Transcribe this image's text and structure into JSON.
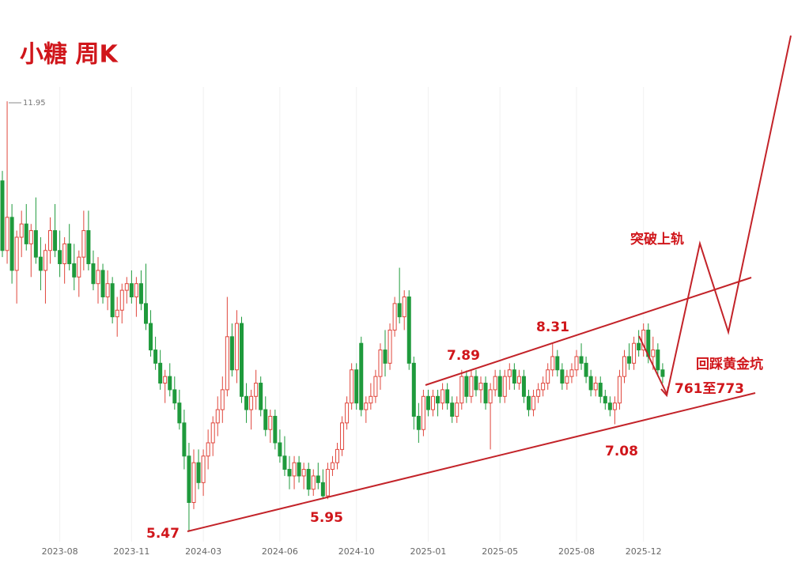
{
  "chart_data": {
    "type": "candlestick",
    "title": "小糖  周K",
    "up_color": "#e0463c",
    "down_color": "#1f9a3c",
    "grid": true,
    "ylim": [
      5.25,
      13.0
    ],
    "categories": [
      null,
      null,
      null,
      null,
      null,
      null,
      null,
      null,
      null,
      null,
      null,
      null,
      "2023-08",
      null,
      null,
      null,
      null,
      null,
      null,
      null,
      null,
      null,
      null,
      null,
      null,
      null,
      null,
      "2023-11",
      null,
      null,
      null,
      null,
      null,
      null,
      null,
      null,
      null,
      null,
      null,
      null,
      null,
      null,
      "2024-03",
      null,
      null,
      null,
      null,
      null,
      null,
      null,
      null,
      null,
      null,
      null,
      null,
      null,
      null,
      null,
      "2024-06",
      null,
      null,
      null,
      null,
      null,
      null,
      null,
      null,
      null,
      null,
      null,
      null,
      null,
      null,
      null,
      "2024-10",
      null,
      null,
      null,
      null,
      null,
      null,
      null,
      null,
      null,
      null,
      null,
      null,
      null,
      null,
      "2025-01",
      null,
      null,
      null,
      null,
      null,
      null,
      null,
      null,
      null,
      null,
      null,
      null,
      null,
      null,
      "2025-05",
      null,
      null,
      null,
      null,
      null,
      null,
      null,
      null,
      null,
      null,
      null,
      null,
      null,
      null,
      null,
      "2025-08",
      null,
      null,
      null,
      null,
      null,
      null,
      null,
      null,
      null,
      null,
      null,
      null,
      null,
      "2025-12",
      null,
      null,
      null,
      null
    ],
    "ohlc": [
      [
        10.75,
        10.9,
        9.6,
        9.7
      ],
      [
        9.7,
        11.95,
        9.5,
        10.2
      ],
      [
        10.2,
        10.4,
        9.2,
        9.4
      ],
      [
        9.4,
        10.0,
        8.9,
        9.9
      ],
      [
        9.9,
        10.3,
        9.6,
        10.1
      ],
      [
        10.1,
        10.4,
        9.7,
        9.8
      ],
      [
        9.8,
        10.1,
        9.3,
        10.0
      ],
      [
        10.0,
        10.5,
        9.5,
        9.6
      ],
      [
        9.6,
        9.9,
        9.1,
        9.4
      ],
      [
        9.4,
        9.8,
        8.9,
        9.7
      ],
      [
        9.7,
        10.2,
        9.5,
        10.0
      ],
      [
        10.0,
        10.4,
        9.6,
        9.7
      ],
      [
        9.7,
        10.0,
        9.3,
        9.5
      ],
      [
        9.5,
        9.9,
        9.2,
        9.8
      ],
      [
        9.8,
        10.1,
        9.4,
        9.5
      ],
      [
        9.5,
        9.8,
        9.1,
        9.3
      ],
      [
        9.3,
        9.7,
        9.0,
        9.6
      ],
      [
        9.6,
        10.3,
        9.4,
        10.0
      ],
      [
        10.0,
        10.3,
        9.4,
        9.5
      ],
      [
        9.5,
        9.7,
        9.1,
        9.2
      ],
      [
        9.2,
        9.6,
        8.9,
        9.4
      ],
      [
        9.4,
        9.5,
        8.9,
        9.0
      ],
      [
        9.0,
        9.4,
        8.8,
        9.2
      ],
      [
        9.2,
        9.3,
        8.6,
        8.7
      ],
      [
        8.7,
        9.0,
        8.4,
        8.8
      ],
      [
        8.8,
        9.2,
        8.6,
        9.1
      ],
      [
        9.1,
        9.3,
        8.9,
        9.2
      ],
      [
        9.2,
        9.4,
        8.9,
        9.0
      ],
      [
        9.0,
        9.3,
        8.7,
        9.2
      ],
      [
        9.2,
        9.4,
        8.8,
        8.9
      ],
      [
        8.9,
        9.5,
        8.5,
        8.6
      ],
      [
        8.6,
        8.8,
        8.1,
        8.2
      ],
      [
        8.2,
        8.4,
        7.9,
        8.0
      ],
      [
        8.0,
        8.2,
        7.6,
        7.7
      ],
      [
        7.7,
        7.9,
        7.4,
        7.8
      ],
      [
        7.8,
        8.0,
        7.5,
        7.6
      ],
      [
        7.6,
        7.8,
        7.3,
        7.4
      ],
      [
        7.4,
        7.6,
        7.0,
        7.1
      ],
      [
        7.1,
        7.3,
        6.4,
        6.6
      ],
      [
        6.6,
        6.8,
        5.47,
        5.9
      ],
      [
        5.9,
        6.7,
        5.8,
        6.5
      ],
      [
        6.5,
        6.7,
        6.1,
        6.2
      ],
      [
        6.2,
        6.7,
        6.0,
        6.6
      ],
      [
        6.6,
        7.0,
        6.4,
        6.8
      ],
      [
        6.8,
        7.2,
        6.6,
        7.1
      ],
      [
        7.1,
        7.5,
        6.9,
        7.3
      ],
      [
        7.3,
        7.8,
        7.1,
        7.6
      ],
      [
        7.6,
        9.0,
        7.5,
        8.4
      ],
      [
        8.4,
        8.6,
        7.8,
        7.9
      ],
      [
        7.9,
        8.8,
        7.7,
        8.6
      ],
      [
        8.6,
        8.7,
        7.4,
        7.5
      ],
      [
        7.5,
        7.7,
        7.1,
        7.3
      ],
      [
        7.3,
        7.6,
        7.0,
        7.5
      ],
      [
        7.5,
        7.9,
        7.3,
        7.7
      ],
      [
        7.7,
        7.8,
        7.2,
        7.3
      ],
      [
        7.3,
        7.5,
        6.9,
        7.0
      ],
      [
        7.0,
        7.3,
        6.8,
        7.2
      ],
      [
        7.2,
        7.3,
        6.7,
        6.8
      ],
      [
        6.8,
        7.0,
        6.5,
        6.6
      ],
      [
        6.6,
        6.9,
        6.3,
        6.4
      ],
      [
        6.4,
        6.6,
        6.1,
        6.3
      ],
      [
        6.3,
        6.6,
        6.1,
        6.5
      ],
      [
        6.5,
        6.6,
        6.2,
        6.3
      ],
      [
        6.3,
        6.5,
        6.1,
        6.4
      ],
      [
        6.4,
        6.5,
        6.0,
        6.1
      ],
      [
        6.1,
        6.4,
        6.0,
        6.3
      ],
      [
        6.3,
        6.5,
        6.1,
        6.2
      ],
      [
        6.2,
        6.4,
        5.95,
        6.0
      ],
      [
        6.0,
        6.5,
        5.95,
        6.4
      ],
      [
        6.4,
        6.6,
        6.3,
        6.5
      ],
      [
        6.5,
        6.8,
        6.4,
        6.7
      ],
      [
        6.7,
        7.2,
        6.6,
        7.1
      ],
      [
        7.1,
        7.5,
        7.0,
        7.4
      ],
      [
        7.4,
        8.0,
        7.3,
        7.9
      ],
      [
        7.9,
        8.0,
        7.3,
        7.4
      ],
      [
        8.3,
        8.4,
        7.2,
        7.3
      ],
      [
        7.3,
        7.5,
        7.1,
        7.4
      ],
      [
        7.4,
        7.7,
        7.3,
        7.5
      ],
      [
        7.5,
        7.9,
        7.4,
        7.8
      ],
      [
        7.8,
        8.3,
        7.6,
        8.2
      ],
      [
        8.2,
        8.5,
        7.8,
        8.0
      ],
      [
        8.0,
        8.6,
        7.9,
        8.5
      ],
      [
        8.5,
        9.0,
        8.4,
        8.9
      ],
      [
        8.9,
        9.44,
        8.6,
        8.7
      ],
      [
        8.7,
        9.1,
        8.5,
        9.0
      ],
      [
        9.0,
        9.1,
        7.9,
        8.0
      ],
      [
        8.0,
        8.1,
        7.0,
        7.2
      ],
      [
        7.2,
        7.4,
        6.8,
        7.0
      ],
      [
        7.0,
        7.6,
        6.9,
        7.5
      ],
      [
        7.5,
        7.6,
        7.2,
        7.3
      ],
      [
        7.3,
        7.6,
        7.2,
        7.5
      ],
      [
        7.5,
        7.6,
        7.2,
        7.4
      ],
      [
        7.4,
        7.7,
        7.3,
        7.6
      ],
      [
        7.6,
        7.7,
        7.3,
        7.4
      ],
      [
        7.4,
        7.5,
        7.1,
        7.2
      ],
      [
        7.2,
        7.5,
        7.1,
        7.4
      ],
      [
        7.4,
        7.9,
        7.3,
        7.8
      ],
      [
        7.8,
        7.89,
        7.4,
        7.5
      ],
      [
        7.5,
        7.9,
        7.4,
        7.8
      ],
      [
        7.8,
        7.9,
        7.5,
        7.6
      ],
      [
        7.6,
        7.8,
        7.4,
        7.7
      ],
      [
        7.7,
        7.8,
        7.3,
        7.4
      ],
      [
        7.4,
        7.7,
        6.7,
        7.6
      ],
      [
        7.6,
        7.9,
        7.5,
        7.8
      ],
      [
        7.8,
        7.9,
        7.4,
        7.5
      ],
      [
        7.5,
        7.9,
        7.4,
        7.8
      ],
      [
        7.8,
        8.0,
        7.6,
        7.9
      ],
      [
        7.9,
        8.0,
        7.6,
        7.7
      ],
      [
        7.7,
        7.9,
        7.6,
        7.8
      ],
      [
        7.8,
        7.9,
        7.4,
        7.5
      ],
      [
        7.5,
        7.6,
        7.2,
        7.3
      ],
      [
        7.3,
        7.6,
        7.2,
        7.5
      ],
      [
        7.5,
        7.7,
        7.4,
        7.6
      ],
      [
        7.6,
        7.8,
        7.5,
        7.7
      ],
      [
        7.7,
        8.0,
        7.6,
        7.9
      ],
      [
        7.9,
        8.31,
        7.8,
        8.1
      ],
      [
        8.1,
        8.2,
        7.8,
        7.9
      ],
      [
        7.9,
        8.0,
        7.6,
        7.7
      ],
      [
        7.7,
        7.9,
        7.6,
        7.8
      ],
      [
        7.8,
        8.0,
        7.7,
        7.9
      ],
      [
        7.9,
        8.2,
        7.8,
        8.1
      ],
      [
        8.1,
        8.3,
        7.9,
        8.0
      ],
      [
        8.0,
        8.1,
        7.7,
        7.8
      ],
      [
        7.8,
        7.9,
        7.5,
        7.6
      ],
      [
        7.6,
        7.8,
        7.5,
        7.7
      ],
      [
        7.7,
        7.8,
        7.4,
        7.5
      ],
      [
        7.5,
        7.6,
        7.3,
        7.4
      ],
      [
        7.4,
        7.5,
        7.2,
        7.3
      ],
      [
        7.3,
        7.5,
        7.08,
        7.4
      ],
      [
        7.4,
        7.9,
        7.3,
        7.8
      ],
      [
        7.8,
        8.2,
        7.7,
        8.1
      ],
      [
        8.1,
        8.3,
        7.9,
        8.0
      ],
      [
        8.0,
        8.4,
        7.9,
        8.3
      ],
      [
        8.3,
        8.5,
        8.1,
        8.2
      ],
      [
        8.2,
        8.6,
        8.1,
        8.5
      ],
      [
        8.5,
        8.6,
        8.0,
        8.1
      ],
      [
        8.1,
        8.4,
        7.9,
        8.2
      ],
      [
        8.2,
        8.3,
        7.8,
        7.9
      ],
      [
        7.9,
        8.0,
        7.7,
        7.8
      ]
    ],
    "annotations": [
      "11.95",
      "5.47",
      "5.95",
      "7.08",
      "7.89",
      "8.31",
      "突破上轨",
      "回踩黄金坑",
      "761至773"
    ]
  }
}
